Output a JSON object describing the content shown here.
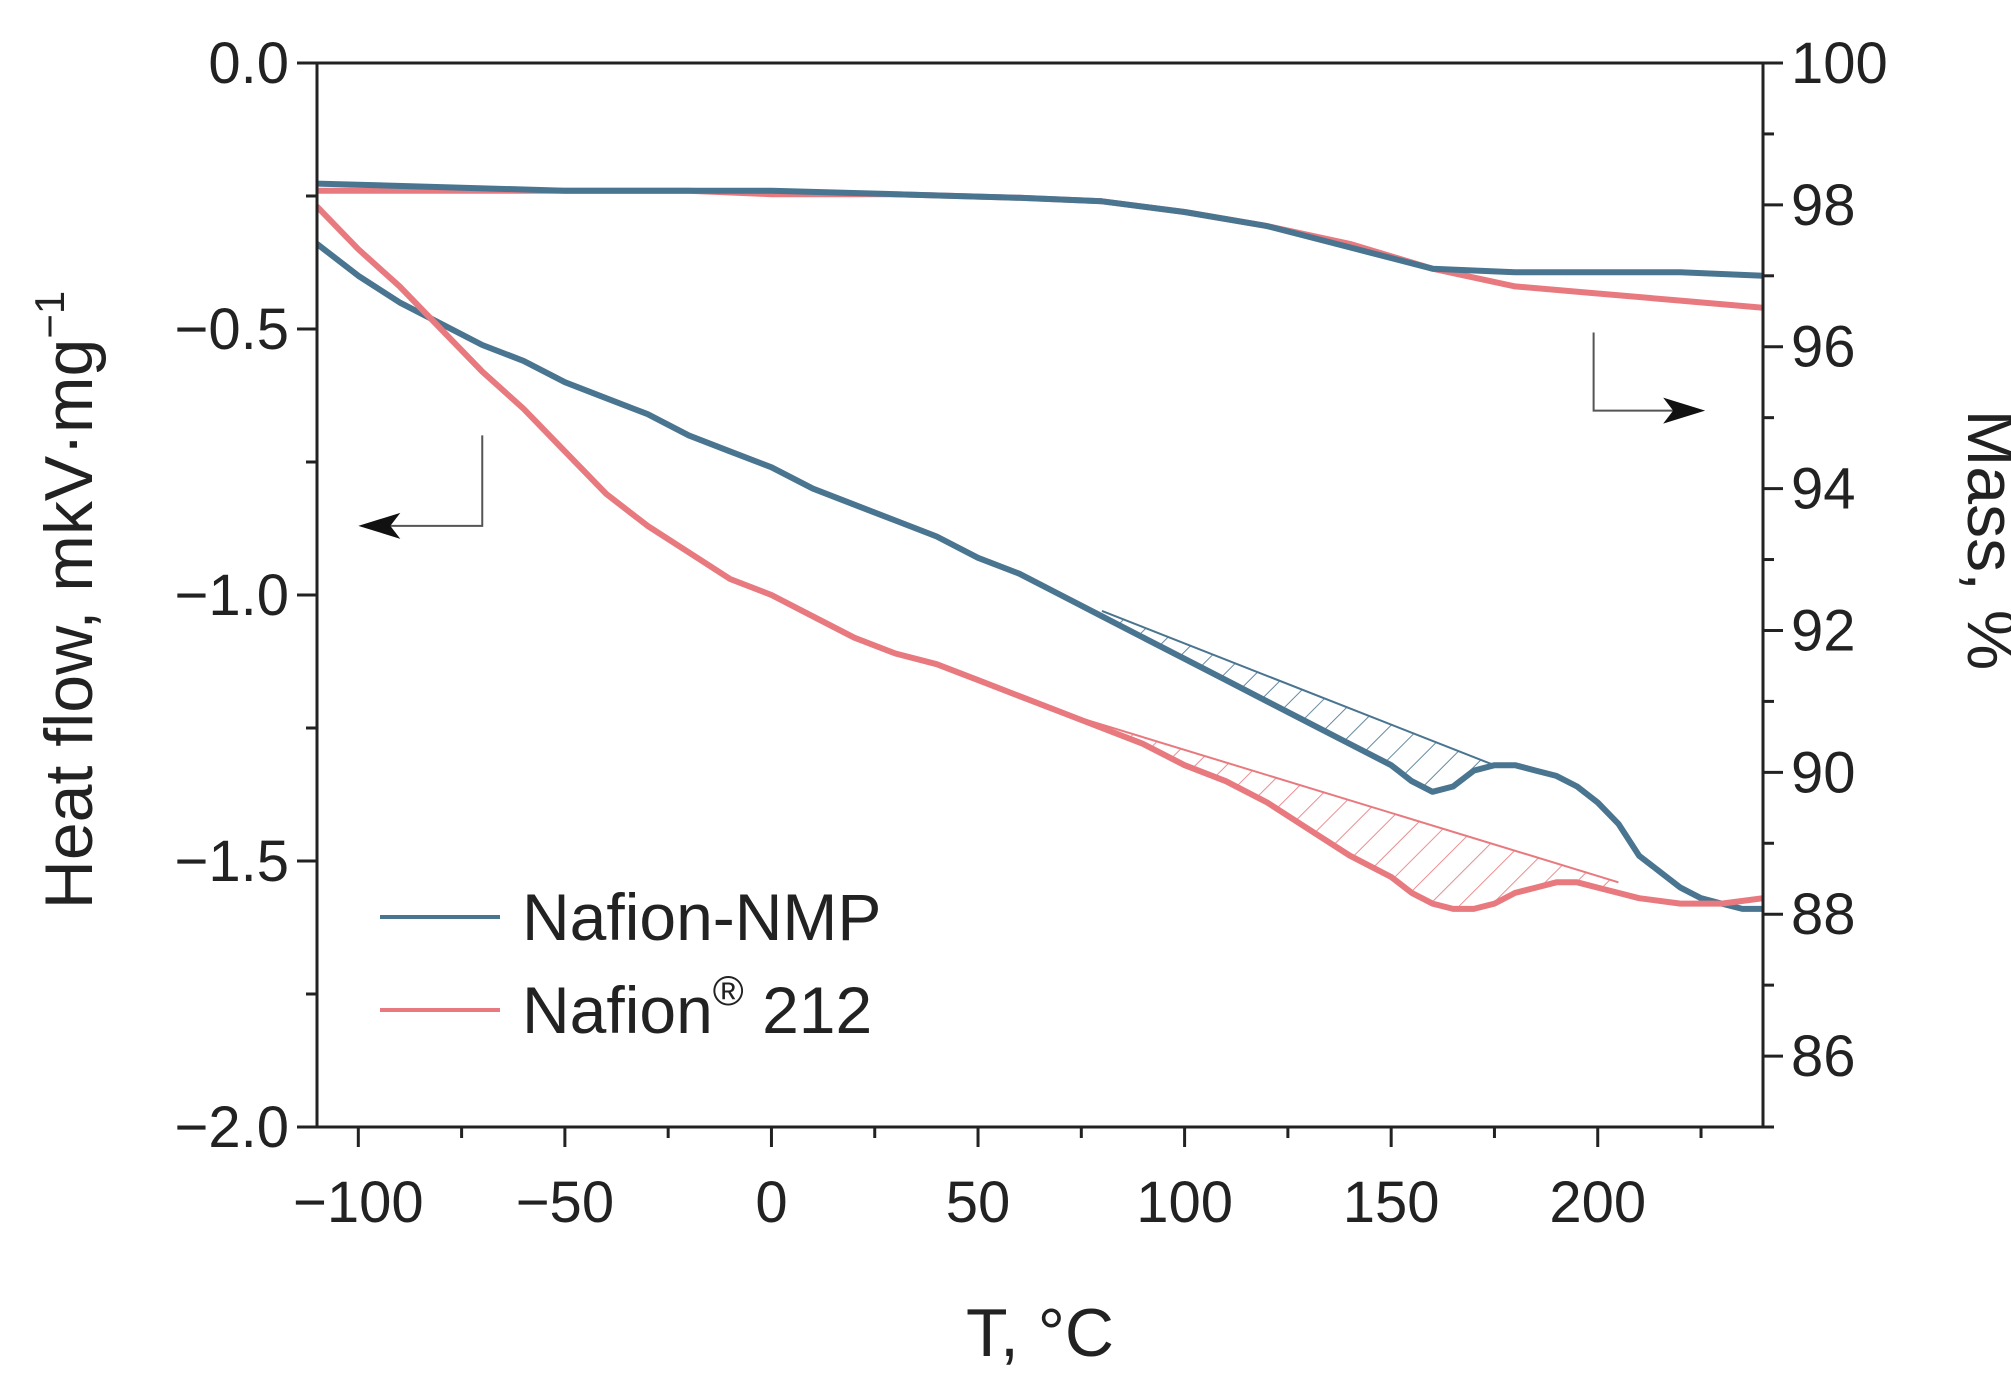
{
  "chart_data": {
    "type": "line",
    "title": "",
    "xlabel": "T, °C",
    "ylabel_left": "Heat flow, mkV·mg",
    "ylabel_left_superscript": "−1",
    "ylabel_right": "Mass, %",
    "xlim": [
      -110,
      240
    ],
    "ylim_left": [
      -2.0,
      0.0
    ],
    "ylim_right": [
      85,
      100
    ],
    "x_ticks": [
      -100,
      -50,
      0,
      50,
      100,
      150,
      200
    ],
    "x_tick_labels": [
      "−100",
      "−50",
      "0",
      "50",
      "100",
      "150",
      "200"
    ],
    "y_left_ticks": [
      0.0,
      -0.5,
      -1.0,
      -1.5,
      -2.0
    ],
    "y_left_tick_labels": [
      "0.0",
      "−0.5",
      "−1.0",
      "−1.5",
      "−2.0"
    ],
    "y_right_ticks": [
      100,
      98,
      96,
      94,
      92,
      90,
      88,
      86
    ],
    "y_right_tick_labels": [
      "100",
      "98",
      "96",
      "94",
      "92",
      "90",
      "88",
      "86"
    ],
    "legend": {
      "position": "bottom-left",
      "entries": [
        {
          "label": "Nafion-NMP",
          "color": "#4a7590"
        },
        {
          "label": "Nafion",
          "superscript": "®",
          "suffix": " 212",
          "color": "#e87a7f"
        }
      ]
    },
    "colors": {
      "nafion_nmp": "#4a7590",
      "nafion_212": "#e87a7f"
    },
    "series": [
      {
        "name": "Nafion-NMP heat flow",
        "axis": "left",
        "color": "#4a7590",
        "x": [
          -110,
          -100,
          -90,
          -80,
          -70,
          -60,
          -50,
          -40,
          -30,
          -20,
          -10,
          0,
          10,
          20,
          30,
          40,
          50,
          60,
          70,
          80,
          90,
          100,
          110,
          120,
          130,
          140,
          150,
          155,
          160,
          165,
          170,
          175,
          180,
          185,
          190,
          195,
          200,
          205,
          210,
          215,
          220,
          225,
          230,
          235,
          240
        ],
        "y": [
          -0.34,
          -0.4,
          -0.45,
          -0.49,
          -0.53,
          -0.56,
          -0.6,
          -0.63,
          -0.66,
          -0.7,
          -0.73,
          -0.76,
          -0.8,
          -0.83,
          -0.86,
          -0.89,
          -0.93,
          -0.96,
          -1.0,
          -1.04,
          -1.08,
          -1.12,
          -1.16,
          -1.2,
          -1.24,
          -1.28,
          -1.32,
          -1.35,
          -1.37,
          -1.36,
          -1.33,
          -1.32,
          -1.32,
          -1.33,
          -1.34,
          -1.36,
          -1.39,
          -1.43,
          -1.49,
          -1.52,
          -1.55,
          -1.57,
          -1.58,
          -1.59,
          -1.59
        ]
      },
      {
        "name": "Nafion 212 heat flow",
        "axis": "left",
        "color": "#e87a7f",
        "x": [
          -110,
          -100,
          -90,
          -80,
          -70,
          -60,
          -50,
          -40,
          -30,
          -20,
          -10,
          0,
          10,
          20,
          30,
          40,
          50,
          60,
          70,
          80,
          90,
          100,
          110,
          120,
          130,
          140,
          150,
          155,
          160,
          165,
          170,
          175,
          180,
          185,
          190,
          195,
          200,
          205,
          210,
          220,
          230,
          240
        ],
        "y": [
          -0.27,
          -0.35,
          -0.42,
          -0.5,
          -0.58,
          -0.65,
          -0.73,
          -0.81,
          -0.87,
          -0.92,
          -0.97,
          -1.0,
          -1.04,
          -1.08,
          -1.11,
          -1.13,
          -1.16,
          -1.19,
          -1.22,
          -1.25,
          -1.28,
          -1.32,
          -1.35,
          -1.39,
          -1.44,
          -1.49,
          -1.53,
          -1.56,
          -1.58,
          -1.59,
          -1.59,
          -1.58,
          -1.56,
          -1.55,
          -1.54,
          -1.54,
          -1.55,
          -1.56,
          -1.57,
          -1.58,
          -1.58,
          -1.57
        ]
      },
      {
        "name": "Nafion-NMP mass",
        "axis": "right",
        "color": "#4a7590",
        "x": [
          -110,
          -80,
          -50,
          -20,
          0,
          30,
          60,
          80,
          100,
          120,
          140,
          160,
          180,
          200,
          220,
          240
        ],
        "y": [
          98.3,
          98.25,
          98.2,
          98.2,
          98.2,
          98.15,
          98.1,
          98.05,
          97.9,
          97.7,
          97.4,
          97.1,
          97.05,
          97.05,
          97.05,
          97.0
        ]
      },
      {
        "name": "Nafion 212 mass",
        "axis": "right",
        "color": "#e87a7f",
        "x": [
          -110,
          -80,
          -50,
          -20,
          0,
          30,
          60,
          80,
          100,
          120,
          140,
          160,
          180,
          200,
          220,
          240
        ],
        "y": [
          98.2,
          98.2,
          98.2,
          98.2,
          98.15,
          98.15,
          98.1,
          98.05,
          97.9,
          97.7,
          97.45,
          97.1,
          96.85,
          96.75,
          96.65,
          96.55
        ]
      }
    ],
    "hatched_regions": [
      {
        "series": "Nafion-NMP heat flow",
        "baseline_from": [
          80,
          -1.03
        ],
        "baseline_to": [
          175,
          -1.32
        ],
        "color": "#4a7590"
      },
      {
        "series": "Nafion 212 heat flow",
        "baseline_from": [
          70,
          -1.22
        ],
        "baseline_to": [
          205,
          -1.54
        ],
        "color": "#e87a7f"
      }
    ],
    "arrows": [
      {
        "points_to": "left axis",
        "from_x": -70,
        "from_y": -0.7,
        "corner_y": -0.87,
        "to_x": -100
      },
      {
        "points_to": "right axis",
        "from_x": 199,
        "from_y": 96.2,
        "corner_y": 95.1,
        "to_x": 226
      }
    ]
  }
}
